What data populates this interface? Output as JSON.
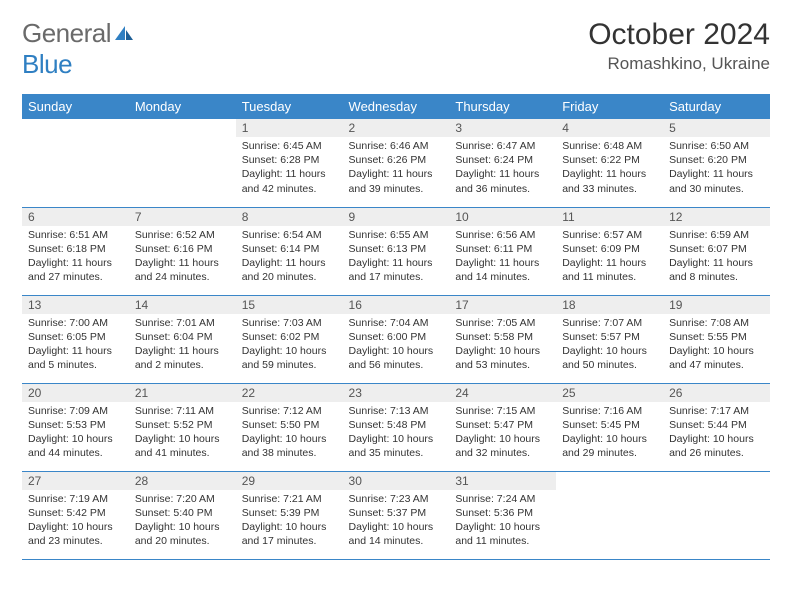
{
  "brand": {
    "general": "General",
    "blue": "Blue"
  },
  "title": "October 2024",
  "location": "Romashkino, Ukraine",
  "colors": {
    "header_bg": "#3a86c8",
    "header_text": "#ffffff",
    "daynum_bg": "#eeeeee",
    "line": "#3a86c8",
    "logo_gray": "#6a6a6a",
    "logo_blue": "#2f7fc2"
  },
  "weekdays": [
    "Sunday",
    "Monday",
    "Tuesday",
    "Wednesday",
    "Thursday",
    "Friday",
    "Saturday"
  ],
  "weeks": [
    [
      {
        "n": "",
        "sr": "",
        "ss": "",
        "dl": ""
      },
      {
        "n": "",
        "sr": "",
        "ss": "",
        "dl": ""
      },
      {
        "n": "1",
        "sr": "Sunrise: 6:45 AM",
        "ss": "Sunset: 6:28 PM",
        "dl": "Daylight: 11 hours and 42 minutes."
      },
      {
        "n": "2",
        "sr": "Sunrise: 6:46 AM",
        "ss": "Sunset: 6:26 PM",
        "dl": "Daylight: 11 hours and 39 minutes."
      },
      {
        "n": "3",
        "sr": "Sunrise: 6:47 AM",
        "ss": "Sunset: 6:24 PM",
        "dl": "Daylight: 11 hours and 36 minutes."
      },
      {
        "n": "4",
        "sr": "Sunrise: 6:48 AM",
        "ss": "Sunset: 6:22 PM",
        "dl": "Daylight: 11 hours and 33 minutes."
      },
      {
        "n": "5",
        "sr": "Sunrise: 6:50 AM",
        "ss": "Sunset: 6:20 PM",
        "dl": "Daylight: 11 hours and 30 minutes."
      }
    ],
    [
      {
        "n": "6",
        "sr": "Sunrise: 6:51 AM",
        "ss": "Sunset: 6:18 PM",
        "dl": "Daylight: 11 hours and 27 minutes."
      },
      {
        "n": "7",
        "sr": "Sunrise: 6:52 AM",
        "ss": "Sunset: 6:16 PM",
        "dl": "Daylight: 11 hours and 24 minutes."
      },
      {
        "n": "8",
        "sr": "Sunrise: 6:54 AM",
        "ss": "Sunset: 6:14 PM",
        "dl": "Daylight: 11 hours and 20 minutes."
      },
      {
        "n": "9",
        "sr": "Sunrise: 6:55 AM",
        "ss": "Sunset: 6:13 PM",
        "dl": "Daylight: 11 hours and 17 minutes."
      },
      {
        "n": "10",
        "sr": "Sunrise: 6:56 AM",
        "ss": "Sunset: 6:11 PM",
        "dl": "Daylight: 11 hours and 14 minutes."
      },
      {
        "n": "11",
        "sr": "Sunrise: 6:57 AM",
        "ss": "Sunset: 6:09 PM",
        "dl": "Daylight: 11 hours and 11 minutes."
      },
      {
        "n": "12",
        "sr": "Sunrise: 6:59 AM",
        "ss": "Sunset: 6:07 PM",
        "dl": "Daylight: 11 hours and 8 minutes."
      }
    ],
    [
      {
        "n": "13",
        "sr": "Sunrise: 7:00 AM",
        "ss": "Sunset: 6:05 PM",
        "dl": "Daylight: 11 hours and 5 minutes."
      },
      {
        "n": "14",
        "sr": "Sunrise: 7:01 AM",
        "ss": "Sunset: 6:04 PM",
        "dl": "Daylight: 11 hours and 2 minutes."
      },
      {
        "n": "15",
        "sr": "Sunrise: 7:03 AM",
        "ss": "Sunset: 6:02 PM",
        "dl": "Daylight: 10 hours and 59 minutes."
      },
      {
        "n": "16",
        "sr": "Sunrise: 7:04 AM",
        "ss": "Sunset: 6:00 PM",
        "dl": "Daylight: 10 hours and 56 minutes."
      },
      {
        "n": "17",
        "sr": "Sunrise: 7:05 AM",
        "ss": "Sunset: 5:58 PM",
        "dl": "Daylight: 10 hours and 53 minutes."
      },
      {
        "n": "18",
        "sr": "Sunrise: 7:07 AM",
        "ss": "Sunset: 5:57 PM",
        "dl": "Daylight: 10 hours and 50 minutes."
      },
      {
        "n": "19",
        "sr": "Sunrise: 7:08 AM",
        "ss": "Sunset: 5:55 PM",
        "dl": "Daylight: 10 hours and 47 minutes."
      }
    ],
    [
      {
        "n": "20",
        "sr": "Sunrise: 7:09 AM",
        "ss": "Sunset: 5:53 PM",
        "dl": "Daylight: 10 hours and 44 minutes."
      },
      {
        "n": "21",
        "sr": "Sunrise: 7:11 AM",
        "ss": "Sunset: 5:52 PM",
        "dl": "Daylight: 10 hours and 41 minutes."
      },
      {
        "n": "22",
        "sr": "Sunrise: 7:12 AM",
        "ss": "Sunset: 5:50 PM",
        "dl": "Daylight: 10 hours and 38 minutes."
      },
      {
        "n": "23",
        "sr": "Sunrise: 7:13 AM",
        "ss": "Sunset: 5:48 PM",
        "dl": "Daylight: 10 hours and 35 minutes."
      },
      {
        "n": "24",
        "sr": "Sunrise: 7:15 AM",
        "ss": "Sunset: 5:47 PM",
        "dl": "Daylight: 10 hours and 32 minutes."
      },
      {
        "n": "25",
        "sr": "Sunrise: 7:16 AM",
        "ss": "Sunset: 5:45 PM",
        "dl": "Daylight: 10 hours and 29 minutes."
      },
      {
        "n": "26",
        "sr": "Sunrise: 7:17 AM",
        "ss": "Sunset: 5:44 PM",
        "dl": "Daylight: 10 hours and 26 minutes."
      }
    ],
    [
      {
        "n": "27",
        "sr": "Sunrise: 7:19 AM",
        "ss": "Sunset: 5:42 PM",
        "dl": "Daylight: 10 hours and 23 minutes."
      },
      {
        "n": "28",
        "sr": "Sunrise: 7:20 AM",
        "ss": "Sunset: 5:40 PM",
        "dl": "Daylight: 10 hours and 20 minutes."
      },
      {
        "n": "29",
        "sr": "Sunrise: 7:21 AM",
        "ss": "Sunset: 5:39 PM",
        "dl": "Daylight: 10 hours and 17 minutes."
      },
      {
        "n": "30",
        "sr": "Sunrise: 7:23 AM",
        "ss": "Sunset: 5:37 PM",
        "dl": "Daylight: 10 hours and 14 minutes."
      },
      {
        "n": "31",
        "sr": "Sunrise: 7:24 AM",
        "ss": "Sunset: 5:36 PM",
        "dl": "Daylight: 10 hours and 11 minutes."
      },
      {
        "n": "",
        "sr": "",
        "ss": "",
        "dl": ""
      },
      {
        "n": "",
        "sr": "",
        "ss": "",
        "dl": ""
      }
    ]
  ]
}
